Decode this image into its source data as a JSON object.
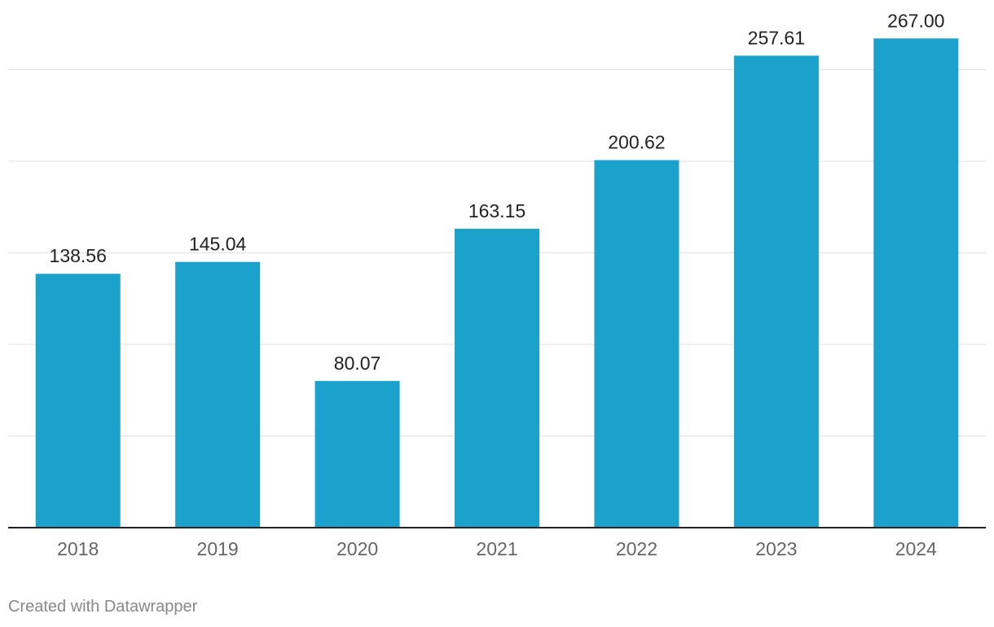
{
  "chart_data": {
    "type": "bar",
    "categories": [
      "2018",
      "2019",
      "2020",
      "2021",
      "2022",
      "2023",
      "2024"
    ],
    "values": [
      138.56,
      145.04,
      80.07,
      163.15,
      200.62,
      257.61,
      267.0
    ],
    "value_labels": [
      "138.56",
      "145.04",
      "80.07",
      "163.15",
      "200.62",
      "257.61",
      "267.00"
    ],
    "title": "",
    "xlabel": "",
    "ylabel": "",
    "ylim": [
      0,
      250
    ],
    "gridlines": [
      50,
      100,
      150,
      200,
      250
    ],
    "grid": true,
    "bar_color": "#1aa1cc"
  },
  "footer": {
    "credit": "Created with Datawrapper"
  }
}
